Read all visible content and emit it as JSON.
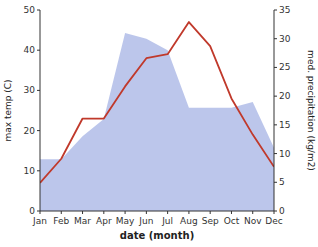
{
  "chart_data": {
    "type": "line",
    "categories": [
      "Jan",
      "Feb",
      "Mar",
      "Apr",
      "May",
      "Jun",
      "Jul",
      "Aug",
      "Sep",
      "Oct",
      "Nov",
      "Dec"
    ],
    "series": [
      {
        "type": "area",
        "axis": "y2",
        "color": "#b0bce8",
        "values": [
          9,
          9,
          13,
          16,
          31,
          30,
          28,
          18,
          18,
          18,
          19,
          11
        ]
      },
      {
        "type": "line",
        "color": "#c0392b",
        "values": [
          7,
          13,
          23,
          23,
          31,
          38,
          39,
          47,
          41,
          28,
          19,
          11
        ]
      }
    ],
    "x_label": "date (month)",
    "y_label": "max temp (C)",
    "y2_label": "med. precipitation (kg/m2)",
    "ylim": [
      0,
      50
    ],
    "yticks": [
      0,
      10,
      20,
      30,
      40,
      50
    ],
    "y2lim": [
      0,
      35
    ],
    "y2ticks": [
      0,
      5,
      10,
      15,
      20,
      25,
      30,
      35
    ],
    "grid": false
  }
}
